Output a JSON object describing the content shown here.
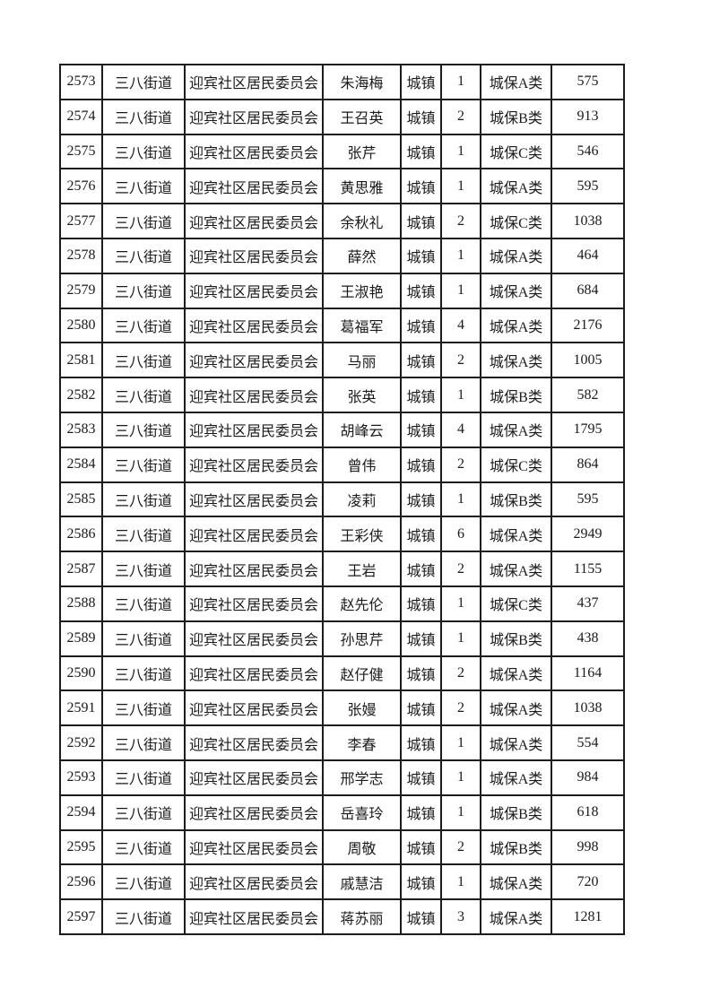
{
  "colors": {
    "page_background": "#ffffff",
    "border": "#1c1c1c",
    "text": "#1a1a1a"
  },
  "table": {
    "field_names": [
      "serial-number",
      "street",
      "committee",
      "name",
      "household-type",
      "person-count",
      "insurance-category",
      "amount"
    ],
    "rows": [
      [
        "2573",
        "三八街道",
        "迎宾社区居民委员会",
        "朱海梅",
        "城镇",
        "1",
        "城保A类",
        "575"
      ],
      [
        "2574",
        "三八街道",
        "迎宾社区居民委员会",
        "王召英",
        "城镇",
        "2",
        "城保B类",
        "913"
      ],
      [
        "2575",
        "三八街道",
        "迎宾社区居民委员会",
        "张芹",
        "城镇",
        "1",
        "城保C类",
        "546"
      ],
      [
        "2576",
        "三八街道",
        "迎宾社区居民委员会",
        "黄思雅",
        "城镇",
        "1",
        "城保A类",
        "595"
      ],
      [
        "2577",
        "三八街道",
        "迎宾社区居民委员会",
        "余秋礼",
        "城镇",
        "2",
        "城保C类",
        "1038"
      ],
      [
        "2578",
        "三八街道",
        "迎宾社区居民委员会",
        "薛然",
        "城镇",
        "1",
        "城保A类",
        "464"
      ],
      [
        "2579",
        "三八街道",
        "迎宾社区居民委员会",
        "王淑艳",
        "城镇",
        "1",
        "城保A类",
        "684"
      ],
      [
        "2580",
        "三八街道",
        "迎宾社区居民委员会",
        "葛福军",
        "城镇",
        "4",
        "城保A类",
        "2176"
      ],
      [
        "2581",
        "三八街道",
        "迎宾社区居民委员会",
        "马丽",
        "城镇",
        "2",
        "城保A类",
        "1005"
      ],
      [
        "2582",
        "三八街道",
        "迎宾社区居民委员会",
        "张英",
        "城镇",
        "1",
        "城保B类",
        "582"
      ],
      [
        "2583",
        "三八街道",
        "迎宾社区居民委员会",
        "胡峰云",
        "城镇",
        "4",
        "城保A类",
        "1795"
      ],
      [
        "2584",
        "三八街道",
        "迎宾社区居民委员会",
        "曾伟",
        "城镇",
        "2",
        "城保C类",
        "864"
      ],
      [
        "2585",
        "三八街道",
        "迎宾社区居民委员会",
        "凌莉",
        "城镇",
        "1",
        "城保B类",
        "595"
      ],
      [
        "2586",
        "三八街道",
        "迎宾社区居民委员会",
        "王彩侠",
        "城镇",
        "6",
        "城保A类",
        "2949"
      ],
      [
        "2587",
        "三八街道",
        "迎宾社区居民委员会",
        "王岩",
        "城镇",
        "2",
        "城保A类",
        "1155"
      ],
      [
        "2588",
        "三八街道",
        "迎宾社区居民委员会",
        "赵先伦",
        "城镇",
        "1",
        "城保C类",
        "437"
      ],
      [
        "2589",
        "三八街道",
        "迎宾社区居民委员会",
        "孙思芹",
        "城镇",
        "1",
        "城保B类",
        "438"
      ],
      [
        "2590",
        "三八街道",
        "迎宾社区居民委员会",
        "赵仔健",
        "城镇",
        "2",
        "城保A类",
        "1164"
      ],
      [
        "2591",
        "三八街道",
        "迎宾社区居民委员会",
        "张嫚",
        "城镇",
        "2",
        "城保A类",
        "1038"
      ],
      [
        "2592",
        "三八街道",
        "迎宾社区居民委员会",
        "李春",
        "城镇",
        "1",
        "城保A类",
        "554"
      ],
      [
        "2593",
        "三八街道",
        "迎宾社区居民委员会",
        "邢学志",
        "城镇",
        "1",
        "城保A类",
        "984"
      ],
      [
        "2594",
        "三八街道",
        "迎宾社区居民委员会",
        "岳喜玲",
        "城镇",
        "1",
        "城保B类",
        "618"
      ],
      [
        "2595",
        "三八街道",
        "迎宾社区居民委员会",
        "周敬",
        "城镇",
        "2",
        "城保B类",
        "998"
      ],
      [
        "2596",
        "三八街道",
        "迎宾社区居民委员会",
        "戚慧洁",
        "城镇",
        "1",
        "城保A类",
        "720"
      ],
      [
        "2597",
        "三八街道",
        "迎宾社区居民委员会",
        "蒋苏丽",
        "城镇",
        "3",
        "城保A类",
        "1281"
      ]
    ]
  }
}
